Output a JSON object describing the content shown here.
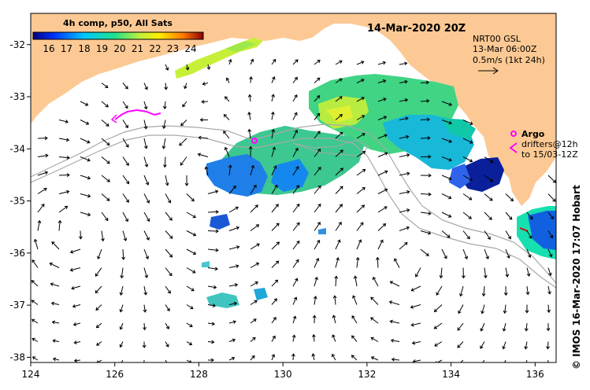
{
  "title": "14-Mar-2020 20Z",
  "colorbar": {
    "caption": "4h comp, p50, All Sats",
    "ticks": [
      "16",
      "17",
      "18",
      "19",
      "20",
      "21",
      "22",
      "23",
      "24"
    ]
  },
  "current_info": {
    "line1": "NRT00 GSL",
    "line2": "13-Mar 06:00Z",
    "line3": "0.5m/s (1kt 24h)"
  },
  "argo": {
    "label": "Argo",
    "drifters_line1": "drifters@12h",
    "drifters_line2": "to 15/03-12Z"
  },
  "credit": "© IMOS 16-Mar-2020 17:07 Hobart",
  "axes": {
    "lon_ticks": [
      "124",
      "126",
      "128",
      "130",
      "132",
      "134",
      "136"
    ],
    "lat_ticks": [
      "-32",
      "-33",
      "-34",
      "-35",
      "-36",
      "-37",
      "-38"
    ],
    "lon_range": [
      124,
      136.5
    ],
    "lat_range": [
      -38.1,
      -31.4
    ]
  },
  "colors": {
    "land": "#fcc994",
    "sea": "#ffffff",
    "argo": "#ff00ff",
    "bathymetry": "#a8a8a8"
  }
}
